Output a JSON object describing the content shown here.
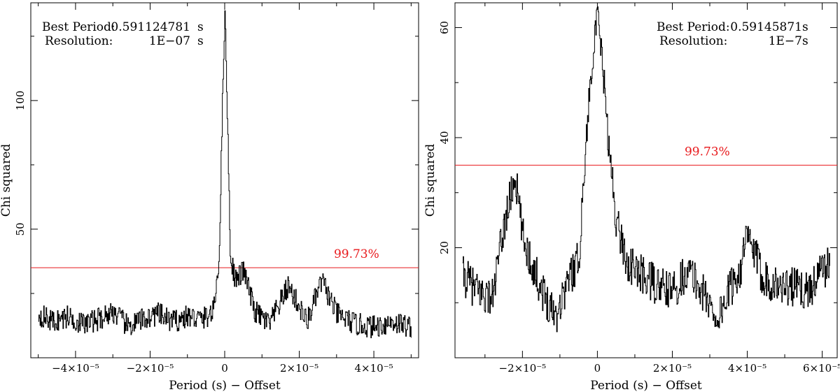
{
  "figure": {
    "colors": {
      "line": "#000000",
      "threshold": "#e8191c",
      "axis": "#000000",
      "background": "#ffffff"
    }
  },
  "chart_data": [
    {
      "type": "line",
      "title": "",
      "xlabel": "Period (s) − Offset",
      "ylabel": "Chi squared",
      "xlim": [
        -5.2e-05,
        5.2e-05
      ],
      "ylim": [
        0,
        138
      ],
      "x_tick_labels": [
        "−4×10⁻⁵",
        "−2×10⁻⁵",
        "0",
        "2×10⁻⁵",
        "4×10⁻⁵"
      ],
      "x_tick_values": [
        -4e-05,
        -2e-05,
        0,
        2e-05,
        4e-05
      ],
      "y_tick_labels": [
        "50",
        "100"
      ],
      "y_tick_values": [
        50,
        100
      ],
      "annotations": {
        "best_period_label": "Best Period:",
        "best_period_value": "0.591124781",
        "best_period_unit": "s",
        "resolution_label": "Resolution:",
        "resolution_value": "1E−07",
        "resolution_unit": "s"
      },
      "threshold": {
        "value": 35,
        "label": "99.73%"
      },
      "series": [
        {
          "x": [
            -5e-05,
            -4.6e-05,
            -4.2e-05,
            -3.8e-05,
            -3.4e-05,
            -3e-05,
            -2.6e-05,
            -2.2e-05,
            -1.8e-05,
            -1.4e-05,
            -1e-05,
            -6e-06,
            -3e-06,
            -1.5e-06,
            -5e-07,
            0.0,
            5e-07,
            1.5e-06,
            3e-06,
            5e-06,
            8e-06,
            1.2e-05,
            1.7e-05,
            2.2e-05,
            2.6e-05,
            3e-05,
            3.5e-05,
            4e-05,
            4.5e-05,
            5e-05
          ],
          "y": [
            17,
            14,
            16,
            13,
            15,
            18,
            12,
            15,
            17,
            14,
            16,
            15,
            18,
            40,
            110,
            134,
            105,
            38,
            30,
            34,
            18,
            13,
            28,
            14,
            30,
            17,
            13,
            12,
            14,
            12
          ]
        }
      ]
    },
    {
      "type": "line",
      "title": "",
      "xlabel": "Period (s) − Offset",
      "ylabel": "Chi squared",
      "xlim": [
        -3.8e-05,
        6.4e-05
      ],
      "ylim": [
        0,
        64.5
      ],
      "x_tick_labels": [
        "−2×10⁻⁵",
        "0",
        "2×10⁻⁵",
        "4×10⁻⁵",
        "6×10⁻⁵"
      ],
      "x_tick_values": [
        -2e-05,
        0,
        2e-05,
        4e-05,
        6e-05
      ],
      "y_tick_labels": [
        "20",
        "40",
        "60"
      ],
      "y_tick_values": [
        20,
        40,
        60
      ],
      "annotations": {
        "best_period_label": "Best Period:",
        "best_period_value": "0.59145871",
        "best_period_unit": "s",
        "resolution_label": "Resolution:",
        "resolution_value": "1E−7",
        "resolution_unit": "s"
      },
      "threshold": {
        "value": 35,
        "label": "99.73%"
      },
      "series": [
        {
          "x": [
            -3.6e-05,
            -3.2e-05,
            -2.8e-05,
            -2.5e-05,
            -2.2e-05,
            -2e-05,
            -1.7e-05,
            -1.4e-05,
            -1.1e-05,
            -8e-06,
            -5e-06,
            -3e-06,
            -1.5e-06,
            0.0,
            1.5e-06,
            3e-06,
            5e-06,
            8e-06,
            1.2e-05,
            1.6e-05,
            2e-05,
            2.4e-05,
            2.8e-05,
            3.2e-05,
            3.5e-05,
            3.8e-05,
            4e-05,
            4.4e-05,
            4.8e-05,
            5.2e-05,
            5.6e-05,
            6e-05,
            6.2e-05
          ],
          "y": [
            15,
            12,
            11,
            24,
            33,
            22,
            16,
            11,
            8,
            14,
            18,
            40,
            54,
            62,
            52,
            38,
            25,
            17,
            15,
            13,
            12,
            16,
            12,
            7,
            12,
            16,
            22,
            15,
            13,
            13,
            12,
            16,
            17
          ]
        }
      ]
    }
  ]
}
